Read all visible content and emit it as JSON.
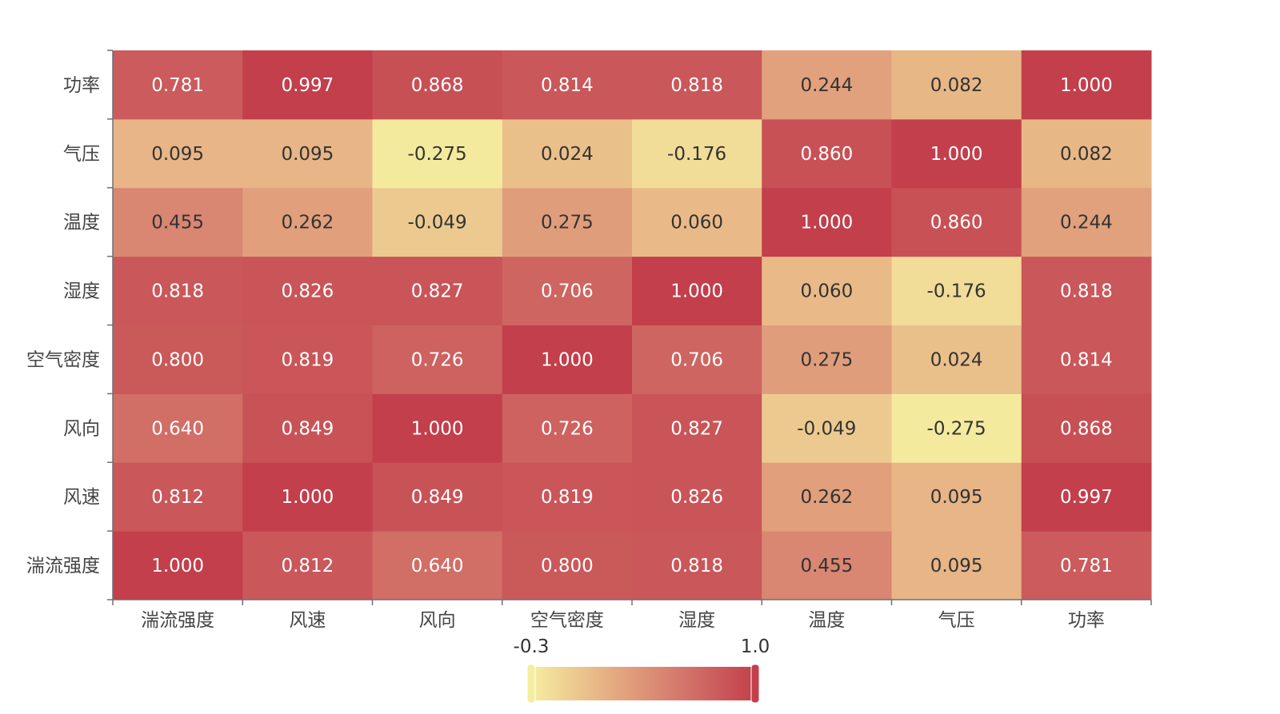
{
  "chart_data": {
    "type": "heatmap",
    "title": "",
    "x_categories": [
      "湍流强度",
      "风速",
      "风向",
      "空气密度",
      "湿度",
      "温度",
      "气压",
      "功率"
    ],
    "y_categories": [
      "湍流强度",
      "风速",
      "风向",
      "空气密度",
      "湿度",
      "温度",
      "气压",
      "功率"
    ],
    "matrix": [
      [
        1.0,
        0.812,
        0.64,
        0.8,
        0.818,
        0.455,
        0.095,
        0.781
      ],
      [
        0.812,
        1.0,
        0.849,
        0.819,
        0.826,
        0.262,
        0.095,
        0.997
      ],
      [
        0.64,
        0.849,
        1.0,
        0.726,
        0.827,
        -0.049,
        -0.275,
        0.868
      ],
      [
        0.8,
        0.819,
        0.726,
        1.0,
        0.706,
        0.275,
        0.024,
        0.814
      ],
      [
        0.818,
        0.826,
        0.827,
        0.706,
        1.0,
        0.06,
        -0.176,
        0.818
      ],
      [
        0.455,
        0.262,
        -0.049,
        0.275,
        0.06,
        1.0,
        0.86,
        0.244
      ],
      [
        0.095,
        0.095,
        -0.275,
        0.024,
        -0.176,
        0.86,
        1.0,
        0.082
      ],
      [
        0.781,
        0.997,
        0.868,
        0.814,
        0.818,
        0.244,
        0.082,
        1.0
      ]
    ],
    "value_format": "0.000",
    "visual_map": {
      "min_label": "-0.3",
      "max_label": "1.0",
      "min": -0.3,
      "max": 1.0,
      "colors": [
        "#f5eea0",
        "#e6b083",
        "#d4776c",
        "#c23f4b"
      ],
      "orientation": "horizontal",
      "placement": "bottom-center"
    },
    "grid": false,
    "legend": "none"
  }
}
